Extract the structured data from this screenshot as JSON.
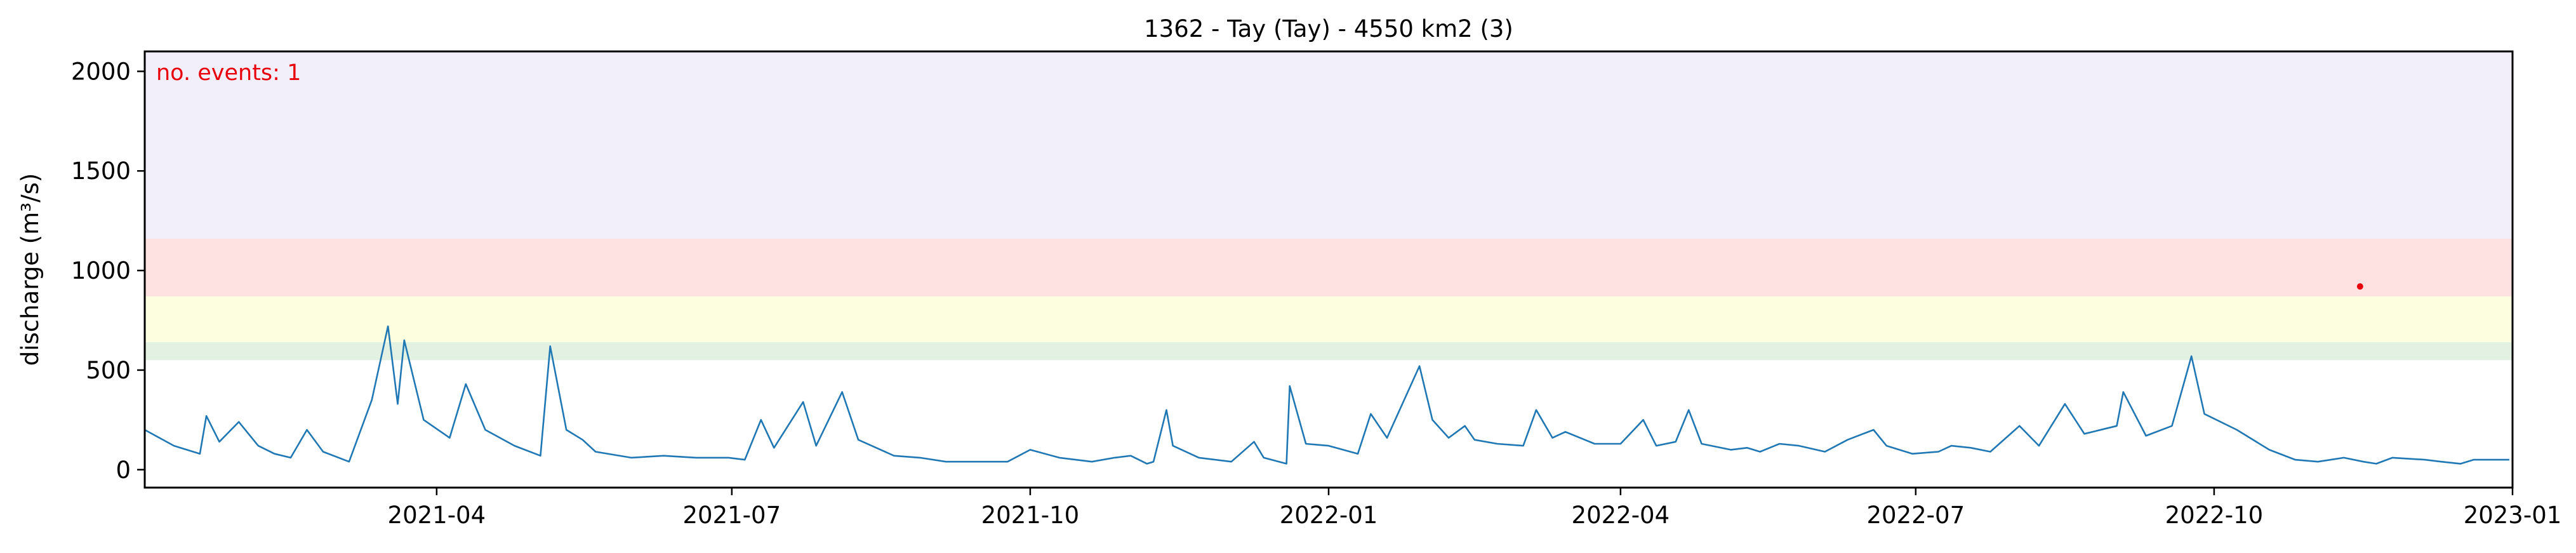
{
  "chart_data": {
    "type": "line",
    "title": "1362 - Tay (Tay) - 4550 km2 (3)",
    "xlabel": "",
    "ylabel": "discharge (m³/s)",
    "xlim": [
      "2021-01-01",
      "2023-01-01"
    ],
    "ylim": [
      -90,
      2100
    ],
    "x_ticks": [
      "2021-04",
      "2021-07",
      "2021-10",
      "2022-01",
      "2022-04",
      "2022-07",
      "2022-10",
      "2023-01"
    ],
    "y_ticks": [
      0,
      500,
      1000,
      1500,
      2000
    ],
    "grid": false,
    "bands": [
      {
        "from": 550,
        "to": 640,
        "color": "#e3f1e3"
      },
      {
        "from": 640,
        "to": 870,
        "color": "#fdfde0"
      },
      {
        "from": 870,
        "to": 1160,
        "color": "#fee1e1"
      },
      {
        "from": 1160,
        "to": 2100,
        "color": "#f2effa"
      }
    ],
    "annotation": {
      "text": "no. events: 1",
      "color": "#e8000b"
    },
    "series": [
      {
        "color": "#1f77b4",
        "points": [
          [
            "2021-01-01",
            200
          ],
          [
            "2021-01-10",
            120
          ],
          [
            "2021-01-18",
            80
          ],
          [
            "2021-01-20",
            270
          ],
          [
            "2021-01-24",
            140
          ],
          [
            "2021-01-30",
            240
          ],
          [
            "2021-02-05",
            120
          ],
          [
            "2021-02-10",
            80
          ],
          [
            "2021-02-15",
            60
          ],
          [
            "2021-02-20",
            200
          ],
          [
            "2021-02-25",
            90
          ],
          [
            "2021-03-05",
            40
          ],
          [
            "2021-03-12",
            350
          ],
          [
            "2021-03-17",
            720
          ],
          [
            "2021-03-20",
            330
          ],
          [
            "2021-03-22",
            650
          ],
          [
            "2021-03-28",
            250
          ],
          [
            "2021-04-05",
            160
          ],
          [
            "2021-04-10",
            430
          ],
          [
            "2021-04-16",
            200
          ],
          [
            "2021-04-25",
            120
          ],
          [
            "2021-05-03",
            70
          ],
          [
            "2021-05-06",
            620
          ],
          [
            "2021-05-11",
            200
          ],
          [
            "2021-05-16",
            150
          ],
          [
            "2021-05-20",
            90
          ],
          [
            "2021-05-31",
            60
          ],
          [
            "2021-06-10",
            70
          ],
          [
            "2021-06-20",
            60
          ],
          [
            "2021-06-30",
            60
          ],
          [
            "2021-07-05",
            50
          ],
          [
            "2021-07-10",
            250
          ],
          [
            "2021-07-14",
            110
          ],
          [
            "2021-07-23",
            340
          ],
          [
            "2021-07-27",
            120
          ],
          [
            "2021-08-04",
            390
          ],
          [
            "2021-08-09",
            150
          ],
          [
            "2021-08-20",
            70
          ],
          [
            "2021-08-28",
            60
          ],
          [
            "2021-09-05",
            40
          ],
          [
            "2021-09-15",
            40
          ],
          [
            "2021-09-24",
            40
          ],
          [
            "2021-10-01",
            100
          ],
          [
            "2021-10-10",
            60
          ],
          [
            "2021-10-20",
            40
          ],
          [
            "2021-10-27",
            60
          ],
          [
            "2021-11-01",
            70
          ],
          [
            "2021-11-06",
            30
          ],
          [
            "2021-11-08",
            40
          ],
          [
            "2021-11-12",
            300
          ],
          [
            "2021-11-14",
            120
          ],
          [
            "2021-11-22",
            60
          ],
          [
            "2021-12-02",
            40
          ],
          [
            "2021-12-09",
            140
          ],
          [
            "2021-12-12",
            60
          ],
          [
            "2021-12-19",
            30
          ],
          [
            "2021-12-20",
            420
          ],
          [
            "2021-12-25",
            130
          ],
          [
            "2022-01-01",
            120
          ],
          [
            "2022-01-10",
            80
          ],
          [
            "2022-01-14",
            280
          ],
          [
            "2022-01-19",
            160
          ],
          [
            "2022-01-29",
            520
          ],
          [
            "2022-02-02",
            250
          ],
          [
            "2022-02-07",
            160
          ],
          [
            "2022-02-12",
            220
          ],
          [
            "2022-02-15",
            150
          ],
          [
            "2022-02-22",
            130
          ],
          [
            "2022-03-02",
            120
          ],
          [
            "2022-03-06",
            300
          ],
          [
            "2022-03-11",
            160
          ],
          [
            "2022-03-15",
            190
          ],
          [
            "2022-03-24",
            130
          ],
          [
            "2022-04-01",
            130
          ],
          [
            "2022-04-08",
            250
          ],
          [
            "2022-04-12",
            120
          ],
          [
            "2022-04-18",
            140
          ],
          [
            "2022-04-22",
            300
          ],
          [
            "2022-04-26",
            130
          ],
          [
            "2022-05-05",
            100
          ],
          [
            "2022-05-10",
            110
          ],
          [
            "2022-05-14",
            90
          ],
          [
            "2022-05-20",
            130
          ],
          [
            "2022-05-26",
            120
          ],
          [
            "2022-06-03",
            90
          ],
          [
            "2022-06-10",
            150
          ],
          [
            "2022-06-18",
            200
          ],
          [
            "2022-06-22",
            120
          ],
          [
            "2022-06-30",
            80
          ],
          [
            "2022-07-08",
            90
          ],
          [
            "2022-07-12",
            120
          ],
          [
            "2022-07-18",
            110
          ],
          [
            "2022-07-24",
            90
          ],
          [
            "2022-08-02",
            220
          ],
          [
            "2022-08-08",
            120
          ],
          [
            "2022-08-16",
            330
          ],
          [
            "2022-08-22",
            180
          ],
          [
            "2022-09-01",
            220
          ],
          [
            "2022-09-03",
            390
          ],
          [
            "2022-09-10",
            170
          ],
          [
            "2022-09-18",
            220
          ],
          [
            "2022-09-24",
            570
          ],
          [
            "2022-09-28",
            280
          ],
          [
            "2022-10-08",
            200
          ],
          [
            "2022-10-18",
            100
          ],
          [
            "2022-10-26",
            50
          ],
          [
            "2022-11-02",
            40
          ],
          [
            "2022-11-10",
            60
          ],
          [
            "2022-11-16",
            40
          ],
          [
            "2022-11-20",
            30
          ],
          [
            "2022-11-25",
            60
          ],
          [
            "2022-12-05",
            50
          ],
          [
            "2022-12-10",
            40
          ],
          [
            "2022-12-16",
            30
          ],
          [
            "2022-12-20",
            50
          ],
          [
            "2022-12-31",
            50
          ]
        ]
      }
    ],
    "events": [
      {
        "x": "2022-11-15",
        "y": 920,
        "color": "#e8000b"
      }
    ]
  }
}
